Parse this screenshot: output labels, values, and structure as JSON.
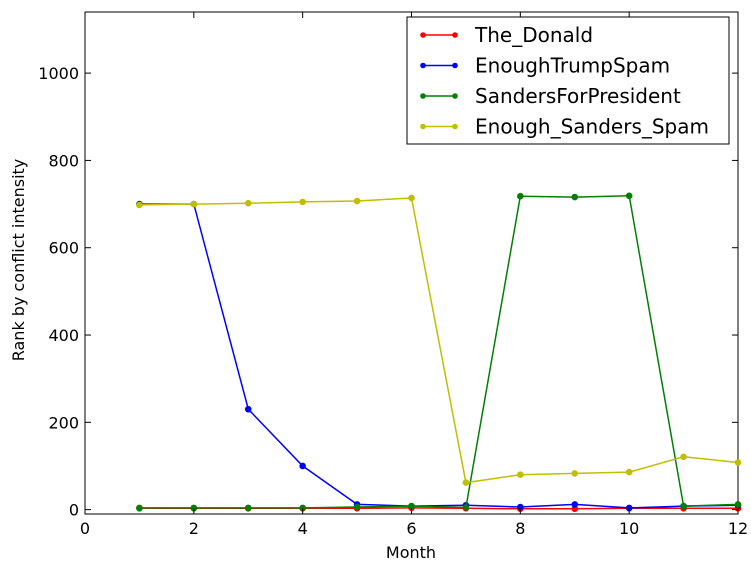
{
  "chart_data": {
    "type": "line",
    "title": "",
    "xlabel": "Month",
    "ylabel": "Rank by conflict intensity",
    "xlim": [
      0,
      12
    ],
    "ylim": [
      -10,
      1140
    ],
    "xticks": [
      0,
      2,
      4,
      6,
      8,
      10,
      12
    ],
    "yticks": [
      0,
      200,
      400,
      600,
      800,
      1000
    ],
    "grid": false,
    "legend_position": "top-right",
    "series": [
      {
        "name": "The_Donald",
        "color": "#ff0000",
        "x": [
          1,
          2,
          3,
          4,
          5,
          6,
          7,
          8,
          9,
          10,
          11,
          12
        ],
        "values": [
          3,
          3,
          3,
          3,
          3,
          4,
          3,
          2,
          2,
          3,
          3,
          3
        ]
      },
      {
        "name": "EnoughTrumpSpam",
        "color": "#0000ff",
        "x": [
          1,
          2,
          3,
          4,
          5,
          6,
          7,
          8,
          9,
          10,
          11,
          12
        ],
        "values": [
          700,
          700,
          230,
          100,
          12,
          8,
          10,
          6,
          12,
          4,
          8,
          10
        ]
      },
      {
        "name": "SandersForPresident",
        "color": "#008000",
        "x": [
          1,
          2,
          3,
          4,
          5,
          6,
          7,
          8,
          9,
          10,
          11,
          12
        ],
        "values": [
          4,
          4,
          4,
          4,
          6,
          8,
          5,
          718,
          716,
          719,
          8,
          12
        ]
      },
      {
        "name": "Enough_Sanders_Spam",
        "color": "#bfbf00",
        "x": [
          1,
          2,
          3,
          4,
          5,
          6,
          7,
          8,
          9,
          10,
          11,
          12
        ],
        "values": [
          698,
          700,
          702,
          705,
          707,
          714,
          62,
          80,
          83,
          86,
          121,
          108
        ]
      }
    ]
  }
}
